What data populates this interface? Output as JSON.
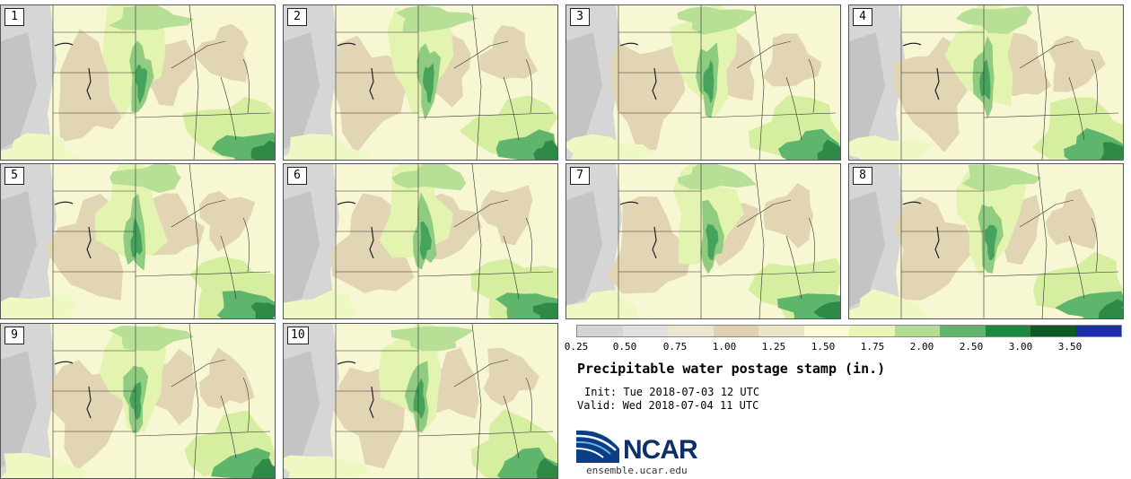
{
  "panels": [
    {
      "label": "1"
    },
    {
      "label": "2"
    },
    {
      "label": "3"
    },
    {
      "label": "4"
    },
    {
      "label": "5"
    },
    {
      "label": "6"
    },
    {
      "label": "7"
    },
    {
      "label": "8"
    },
    {
      "label": "9"
    },
    {
      "label": "10"
    }
  ],
  "legend": {
    "ticks": [
      "0.25",
      "0.50",
      "0.75",
      "1.00",
      "1.25",
      "1.50",
      "1.75",
      "2.00",
      "2.50",
      "3.00",
      "3.50"
    ],
    "colors": [
      "#d4d4d4",
      "#e1e1dd",
      "#ece5cf",
      "#dfd2b0",
      "#eae4c4",
      "#fbfbd4",
      "#e9f6b4",
      "#b4dd92",
      "#5fb56c",
      "#1c8a3e",
      "#0c5a24",
      "#1a2fa6"
    ]
  },
  "title": "Precipitable water postage stamp (in.)",
  "init": "Init: Tue 2018-07-03 12 UTC",
  "valid": "Valid: Wed 2018-07-04 11 UTC",
  "logo": {
    "name": "NCAR",
    "url": "ensemble.ucar.edu"
  }
}
